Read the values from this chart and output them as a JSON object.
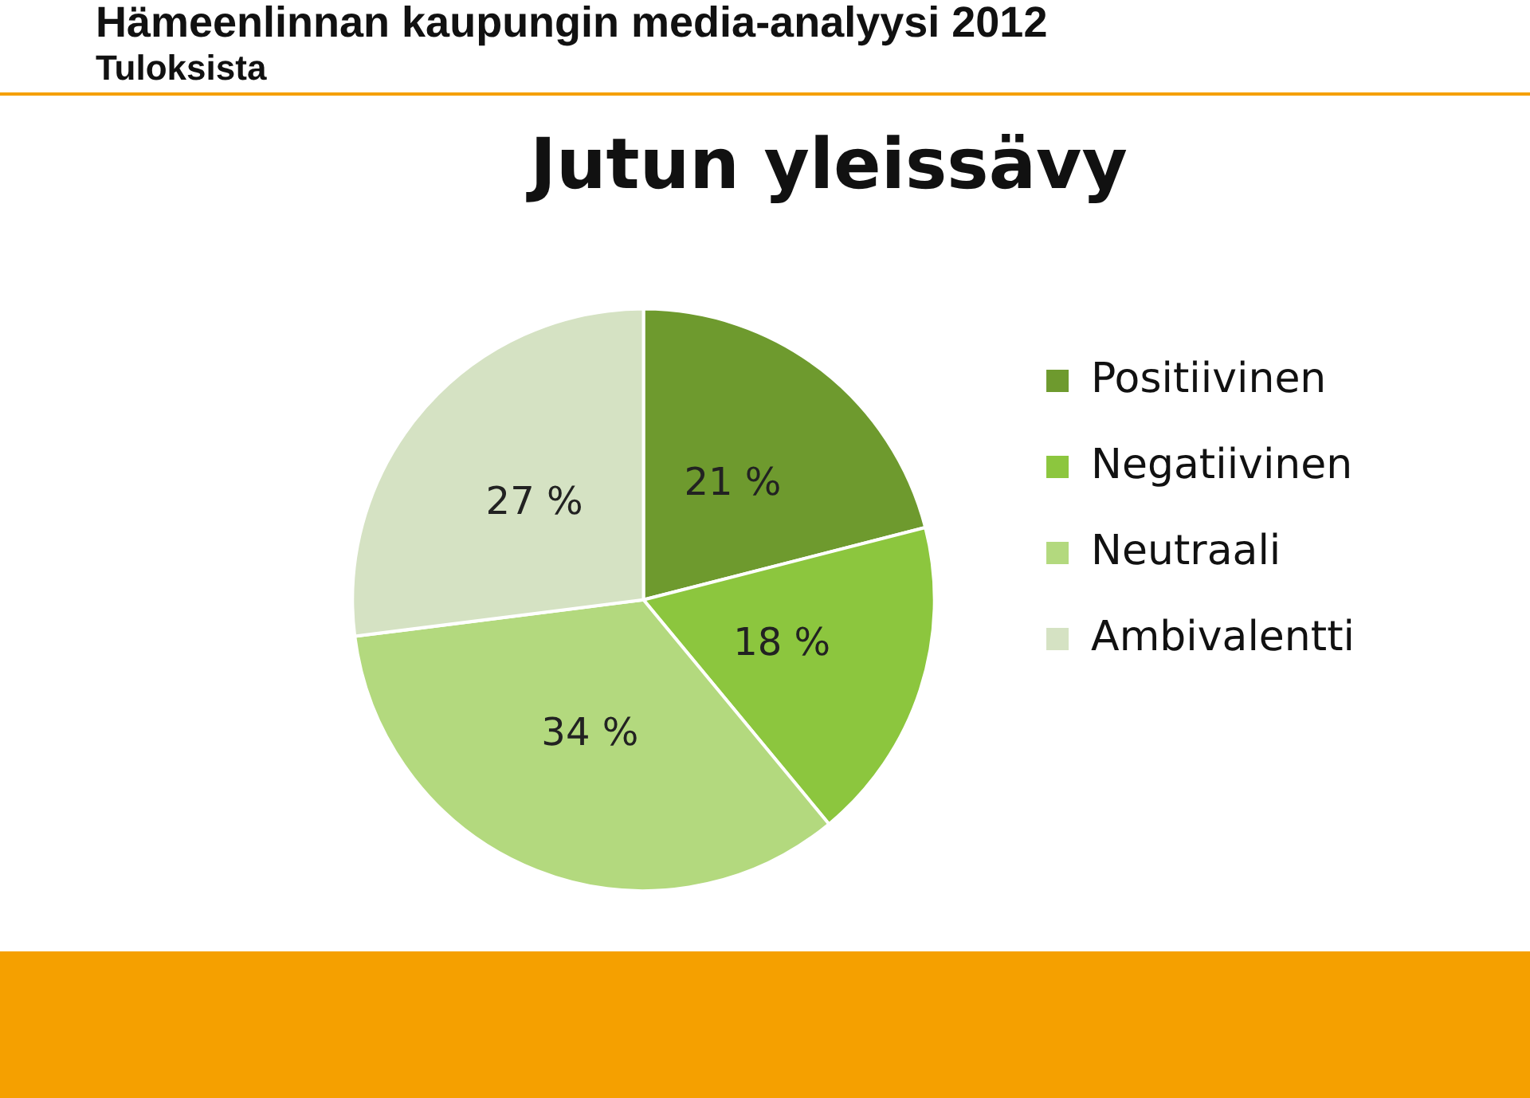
{
  "chart_data": {
    "type": "pie",
    "title": "Jutun yleissävy",
    "categories": [
      "Positiivinen",
      "Negatiivinen",
      "Neutraali",
      "Ambivalentti"
    ],
    "values": [
      21,
      18,
      34,
      27
    ],
    "value_labels": [
      "21 %",
      "18 %",
      "34 %",
      "27 %"
    ],
    "colors": [
      "#6e9a2e",
      "#8cc63e",
      "#b3d97e",
      "#d5e2c3"
    ],
    "legend": "right",
    "annotations": [
      "Hämeenlinnan kaupungin media-analyysi 2012",
      "Tuloksista"
    ]
  }
}
